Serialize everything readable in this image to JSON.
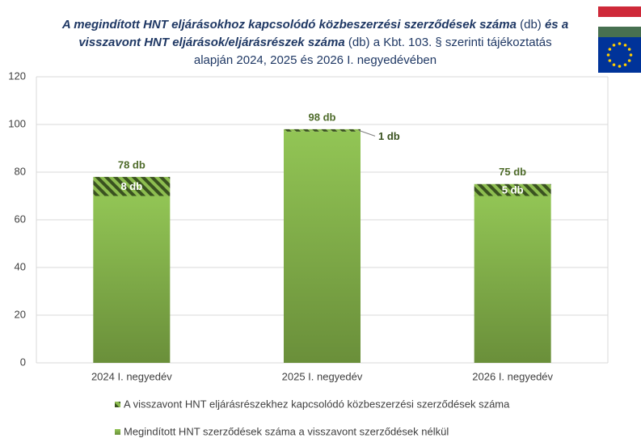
{
  "chart_data": {
    "type": "stacked_bar",
    "title_lines": [
      [
        {
          "text": "A megindított HNT eljárásokhoz kapcsolódó közbeszerzési szerződések száma",
          "emphasis": true
        },
        {
          "text": " (db) ",
          "emphasis": false
        },
        {
          "text": "és  a",
          "emphasis": true
        }
      ],
      [
        {
          "text": "visszavont HNT eljárások/eljárásrészek száma",
          "emphasis": true
        },
        {
          "text": " (db) a Kbt. 103. § szerinti tájékoztatás",
          "emphasis": false
        }
      ],
      [
        {
          "text": "alapján 2024, 2025 és 2026 I. negyedévében",
          "emphasis": false
        }
      ]
    ],
    "categories": [
      "2024 I. negyedév",
      "2025 I. negyedév",
      "2026 I. negyedév"
    ],
    "series": [
      {
        "name": "Megindított HNT szerződések száma a visszavont szerződések nélkül",
        "color": "#8dbd50",
        "values": [
          70,
          97,
          70
        ]
      },
      {
        "name": "A visszavont HNT eljárásrészekhez kapcsolódó közbeszerzési szerződések száma",
        "color": "#3a5220",
        "values": [
          8,
          1,
          5
        ],
        "value_labels": [
          "8 db",
          "1 db",
          "5 db"
        ]
      }
    ],
    "total_labels": [
      "78 db",
      "98 db",
      "75 db"
    ],
    "ylim": [
      0,
      120
    ],
    "yticks": [
      0,
      20,
      40,
      60,
      80,
      100,
      120
    ],
    "grid": true
  }
}
